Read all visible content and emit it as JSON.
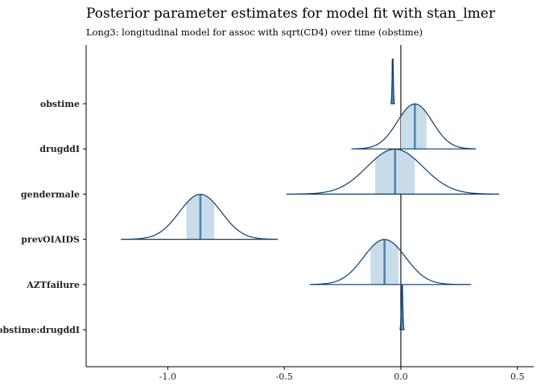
{
  "chart_data": {
    "type": "density-ridge",
    "title": "Posterior parameter estimates for model fit with stan_lmer",
    "subtitle": "Long3: longitudinal model for assoc with sqrt(CD4) over time (obstime)",
    "xlim": [
      -1.35,
      0.57
    ],
    "x_ticks": [
      -1.0,
      -0.5,
      0.0,
      0.5
    ],
    "x_tick_labels": [
      "-1.0",
      "-0.5",
      "0.0",
      "0.5"
    ],
    "reference_line_x": 0.0,
    "colors": {
      "outline": "#0b3d6b",
      "fill": "#c9dce9",
      "median": "#4f86ae",
      "axis": "#000000"
    },
    "parameters": [
      {
        "name": "obstime",
        "median": -0.035,
        "interval": [
          -0.038,
          -0.032
        ],
        "range": [
          -0.042,
          -0.028
        ],
        "sd": 0.0025
      },
      {
        "name": "drugddI",
        "median": 0.06,
        "interval": [
          0.0,
          0.11
        ],
        "range": [
          -0.21,
          0.32
        ],
        "sd": 0.075
      },
      {
        "name": "gendermale",
        "median": -0.025,
        "interval": [
          -0.11,
          0.06
        ],
        "range": [
          -0.49,
          0.42
        ],
        "sd": 0.12
      },
      {
        "name": "prevOIAIDS",
        "median": -0.86,
        "interval": [
          -0.92,
          -0.8
        ],
        "range": [
          -1.2,
          -0.53
        ],
        "sd": 0.09
      },
      {
        "name": "AZTfailure",
        "median": -0.07,
        "interval": [
          -0.13,
          -0.01
        ],
        "range": [
          -0.39,
          0.3
        ],
        "sd": 0.09
      },
      {
        "name": "obstime:drugddI",
        "median": 0.005,
        "interval": [
          0.002,
          0.008
        ],
        "range": [
          -0.003,
          0.013
        ],
        "sd": 0.003
      }
    ]
  }
}
